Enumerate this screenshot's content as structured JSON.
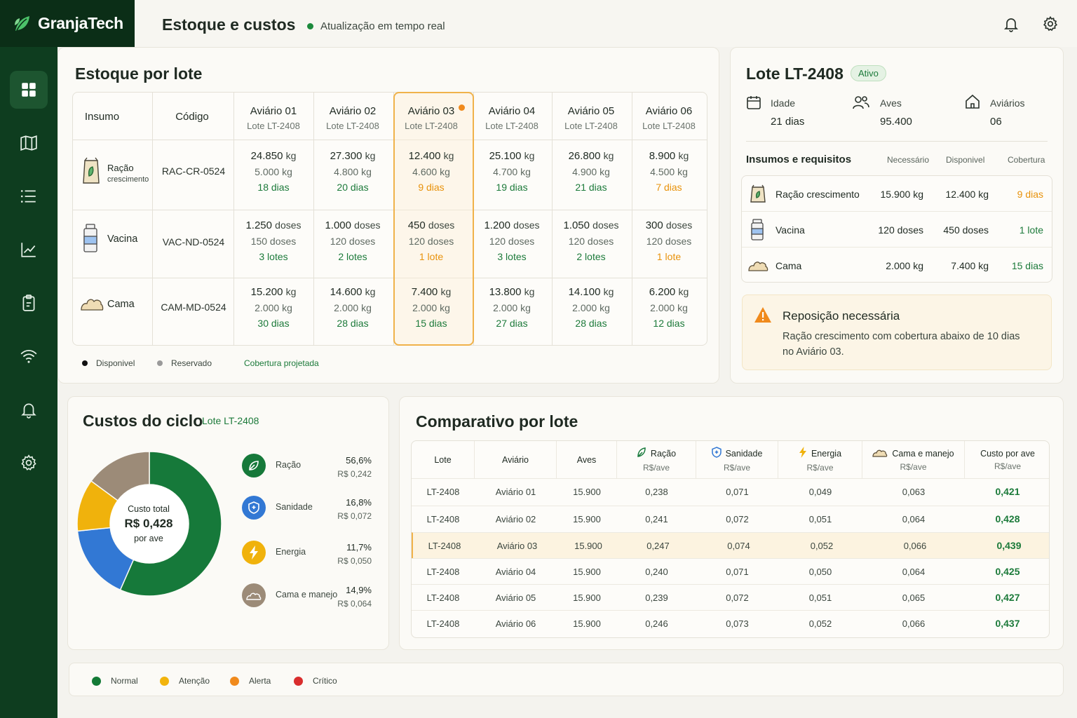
{
  "app": {
    "brand": "GranjaTech"
  },
  "header": {
    "title": "Estoque e custos",
    "live_status": "Atualização em tempo real"
  },
  "sidebar": {
    "items": [
      {
        "icon": "grid-icon",
        "active": true
      },
      {
        "icon": "map-icon"
      },
      {
        "icon": "list-icon"
      },
      {
        "icon": "chart-icon"
      },
      {
        "icon": "clipboard-icon"
      },
      {
        "icon": "wifi-icon"
      },
      {
        "icon": "bell-icon"
      },
      {
        "icon": "gear-icon"
      }
    ]
  },
  "stock": {
    "title": "Estoque por lote",
    "col_insumo": "Insumo",
    "col_codigo": "Código",
    "aviarios": [
      {
        "name": "Aviário 01",
        "lote": "Lote LT-2408"
      },
      {
        "name": "Aviário 02",
        "lote": "Lote LT-2408"
      },
      {
        "name": "Aviário 03",
        "lote": "Lote LT-2408",
        "highlight": true
      },
      {
        "name": "Aviário  04",
        "lote": "Lote LT-2408"
      },
      {
        "name": "Aviário 05",
        "lote": "Lote LT-2408"
      },
      {
        "name": "Aviário 06",
        "lote": "Lote LT-2408"
      }
    ],
    "rows": [
      {
        "name": "Ração",
        "name_sub": "crescimento",
        "code": "RAC-CR-0524",
        "icon": "feed-bag-icon",
        "cells": [
          {
            "disp": "24.850",
            "unit": "kg",
            "res": "5.000 kg",
            "cov": "18 dias",
            "warn": false
          },
          {
            "disp": "27.300",
            "unit": "kg",
            "res": "4.800 kg",
            "cov": "20 dias",
            "warn": false
          },
          {
            "disp": "12.400",
            "unit": "kg",
            "res": "4.600 kg",
            "cov": "9 dias",
            "warn": true
          },
          {
            "disp": "25.100",
            "unit": "kg",
            "res": "4.700 kg",
            "cov": "19 dias",
            "warn": false
          },
          {
            "disp": "26.800",
            "unit": "kg",
            "res": "4.900 kg",
            "cov": "21 dias",
            "warn": false
          },
          {
            "disp": "8.900",
            "unit": "kg",
            "res": "4.500 kg",
            "cov": "7 dias",
            "warn": true
          }
        ]
      },
      {
        "name": "Vacina",
        "name_sub": "",
        "code": "VAC-ND-0524",
        "icon": "vaccine-vial-icon",
        "cells": [
          {
            "disp": "1.250",
            "unit": "doses",
            "res": "150 doses",
            "cov": "3 lotes",
            "warn": false
          },
          {
            "disp": "1.000",
            "unit": "doses",
            "res": "120 doses",
            "cov": "2 lotes",
            "warn": false
          },
          {
            "disp": "450",
            "unit": "doses",
            "res": "120 doses",
            "cov": "1 lote",
            "warn": true
          },
          {
            "disp": "1.200",
            "unit": "doses",
            "res": "120 doses",
            "cov": "3 lotes",
            "warn": false
          },
          {
            "disp": "1.050",
            "unit": "doses",
            "res": "120 doses",
            "cov": "2 lotes",
            "warn": false
          },
          {
            "disp": "300",
            "unit": "doses",
            "res": "120 doses",
            "cov": "1 lote",
            "warn": true
          }
        ]
      },
      {
        "name": "Cama",
        "name_sub": "",
        "code": "CAM-MD-0524",
        "icon": "bedding-pile-icon",
        "cells": [
          {
            "disp": "15.200",
            "unit": "kg",
            "res": "2.000 kg",
            "cov": "30 dias",
            "warn": false
          },
          {
            "disp": "14.600",
            "unit": "kg",
            "res": "2.000 kg",
            "cov": "28 dias",
            "warn": false
          },
          {
            "disp": "7.400",
            "unit": "kg",
            "res": "2.000 kg",
            "cov": "15 dias",
            "warn": false
          },
          {
            "disp": "13.800",
            "unit": "kg",
            "res": "2.000 kg",
            "cov": "27 dias",
            "warn": false
          },
          {
            "disp": "14.100",
            "unit": "kg",
            "res": "2.000 kg",
            "cov": "28 dias",
            "warn": false
          },
          {
            "disp": "6.200",
            "unit": "kg",
            "res": "2.000 kg",
            "cov": "12 dias",
            "warn": false
          }
        ]
      }
    ],
    "legend": {
      "available": "Disponivel",
      "reserved": "Reservado",
      "coverage": "Cobertura projetada"
    }
  },
  "lote": {
    "title": "Lote LT-2408",
    "badge": "Ativo",
    "idade_label": "Idade",
    "idade_value": "21 dias",
    "aves_label": "Aves",
    "aves_value": "95.400",
    "aviarios_label": "Aviários",
    "aviarios_value": "06",
    "req_title": "Insumos e requisitos",
    "req_cols": [
      "Necessário",
      "Disponivel",
      "Cobertura"
    ],
    "req_rows": [
      {
        "name": "Ração crescimento",
        "need": "15.900 kg",
        "avail": "12.400 kg",
        "cov": "9 dias",
        "warn": true
      },
      {
        "name": "Vacina",
        "need": "120 doses",
        "avail": "450 doses",
        "cov": "1 lote",
        "warn": false
      },
      {
        "name": "Cama",
        "need": "2.000 kg",
        "avail": "7.400 kg",
        "cov": "15 dias",
        "warn": false
      }
    ],
    "alert_title": "Reposição necessária",
    "alert_line1": "Ração crescimento com cobertura abaixo de 10 dias",
    "alert_line2": "no Aviário 03."
  },
  "costs": {
    "title": "Custos do ciclo",
    "lote": "Lote LT-2408",
    "center_label": "Custo total",
    "center_value": "R$ 0,428",
    "center_sub": "por ave",
    "items": [
      {
        "label": "Ração",
        "pct": "56,6%",
        "val": "R$ 0,242",
        "share": 56.6,
        "color": "#16793a"
      },
      {
        "label": "Sanidade",
        "pct": "16,8%",
        "val": "R$ 0,072",
        "share": 16.8,
        "color": "#3278d4"
      },
      {
        "label": "Energia",
        "pct": "11,7%",
        "val": "R$ 0,050",
        "share": 11.7,
        "color": "#f0b20c"
      },
      {
        "label": "Cama e manejo",
        "pct": "14,9%",
        "val": "R$ 0,064",
        "share": 14.9,
        "color": "#9c8b78"
      }
    ]
  },
  "compare": {
    "title": "Comparativo por lote",
    "headers": [
      {
        "t": "Lote",
        "s": ""
      },
      {
        "t": "Aviário",
        "s": ""
      },
      {
        "t": "Aves",
        "s": ""
      },
      {
        "t": "Ração",
        "s": "R$/ave",
        "icon": "leaf-icon"
      },
      {
        "t": "Sanidade",
        "s": "R$/ave",
        "icon": "shield-icon"
      },
      {
        "t": "Energia",
        "s": "R$/ave",
        "icon": "lightning-icon"
      },
      {
        "t": "Cama e manejo",
        "s": "R$/ave",
        "icon": "bedding-pile-icon"
      },
      {
        "t": "Custo por ave",
        "s": "R$/ave"
      }
    ],
    "rows": [
      [
        "LT-2408",
        "Aviário 01",
        "15.900",
        "0,238",
        "0,071",
        "0,049",
        "0,063",
        "0,421"
      ],
      [
        "LT-2408",
        "Aviário 02",
        "15.900",
        "0,241",
        "0,072",
        "0,051",
        "0,064",
        "0,428"
      ],
      [
        "LT-2408",
        "Aviário 03",
        "15.900",
        "0,247",
        "0,074",
        "0,052",
        "0,066",
        "0,439"
      ],
      [
        "LT-2408",
        "Aviário 04",
        "15.900",
        "0,240",
        "0,071",
        "0,050",
        "0,064",
        "0,425"
      ],
      [
        "LT-2408",
        "Aviário 05",
        "15.900",
        "0,239",
        "0,072",
        "0,051",
        "0,065",
        "0,427"
      ],
      [
        "LT-2408",
        "Aviário 06",
        "15.900",
        "0,246",
        "0,073",
        "0,052",
        "0,066",
        "0,437"
      ]
    ],
    "highlight_row": 2
  },
  "status_legend": [
    {
      "label": "Normal",
      "color": "#137a36"
    },
    {
      "label": "Atenção",
      "color": "#f2b40c"
    },
    {
      "label": "Alerta",
      "color": "#f08a1c"
    },
    {
      "label": "Crítico",
      "color": "#d92d2d"
    }
  ]
}
